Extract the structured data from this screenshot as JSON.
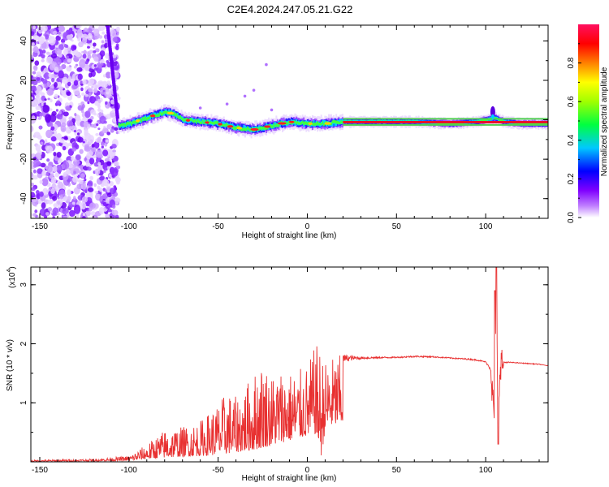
{
  "title": "C2E4.2024.247.05.21.G22",
  "colorbar": {
    "label": "Normalized spectral amplitude",
    "ticks": [
      "0.0",
      "0.2",
      "0.4",
      "0.6",
      "0.8"
    ],
    "tick_values": [
      0.0,
      0.2,
      0.4,
      0.6,
      0.8
    ],
    "range": [
      0,
      1
    ],
    "colormap": [
      "#ffffff",
      "#8000ff",
      "#0000ff",
      "#00ffff",
      "#00ff00",
      "#ffff00",
      "#ff0000",
      "#ff1060"
    ]
  },
  "chart_data": [
    {
      "type": "heatmap",
      "xlabel": "Height of straight line (km)",
      "ylabel": "Frequency (Hz)",
      "xlim": [
        -155,
        135
      ],
      "ylim": [
        -50,
        48
      ],
      "xticks": [
        -150,
        -100,
        -50,
        0,
        50,
        100
      ],
      "xtick_labels": [
        "-150",
        "-100",
        "-50",
        "0",
        "50",
        "100"
      ],
      "yticks": [
        -40,
        -20,
        0,
        20,
        40
      ],
      "ytick_labels": [
        "-40",
        "-20",
        "0",
        "20",
        "40"
      ],
      "ridge": {
        "description_values": "approximate frequency centre of the main band vs height",
        "x": [
          -105,
          -100,
          -90,
          -80,
          -75,
          -70,
          -60,
          -50,
          -40,
          -30,
          -20,
          -10,
          0,
          10,
          20,
          40,
          60,
          80,
          95,
          100,
          105,
          110,
          120,
          135
        ],
        "y": [
          -3,
          -2,
          1,
          4,
          3,
          0,
          -1,
          -2,
          -4,
          -5,
          -3,
          -1,
          -2,
          -2,
          -1,
          -1,
          -1,
          -2,
          -1,
          0,
          1,
          -1,
          -2,
          -2
        ]
      }
    },
    {
      "type": "line",
      "xlabel": "Height of straight line (km)",
      "ylabel": "SNR (10 * v/v)",
      "y_multiplier": "(x10",
      "y_multiplier_exp": "4",
      "y_multiplier_close": ")",
      "xlim": [
        -155,
        135
      ],
      "ylim": [
        0,
        3.3
      ],
      "xticks": [
        -150,
        -100,
        -50,
        0,
        50,
        100
      ],
      "xtick_labels": [
        "-150",
        "-100",
        "-50",
        "0",
        "50",
        "100"
      ],
      "yticks": [
        1,
        2,
        3
      ],
      "ytick_labels": [
        "1",
        "2",
        "3"
      ],
      "color": "#e83030",
      "envelope": {
        "x": [
          -155,
          -120,
          -100,
          -95,
          -90,
          -80,
          -70,
          -60,
          -50,
          -45,
          -40,
          -35,
          -30,
          -25,
          -20,
          -15,
          -10,
          -5,
          0,
          5,
          8,
          10,
          15,
          20,
          25,
          30,
          40,
          50,
          60,
          70,
          80,
          90,
          95,
          100,
          103,
          105,
          106,
          107,
          108,
          110,
          115,
          120,
          125,
          130,
          135
        ],
        "base": [
          0.02,
          0.03,
          0.05,
          0.08,
          0.12,
          0.18,
          0.22,
          0.25,
          0.3,
          0.35,
          0.4,
          0.45,
          0.5,
          0.6,
          0.7,
          0.8,
          0.9,
          1.0,
          1.1,
          1.2,
          0.2,
          1.4,
          1.55,
          1.62,
          1.68,
          1.72,
          1.74,
          1.75,
          1.76,
          1.76,
          1.74,
          1.72,
          1.7,
          1.68,
          1.5,
          0.6,
          2.9,
          0.5,
          1.7,
          1.66,
          1.67,
          1.66,
          1.65,
          1.64,
          1.62
        ],
        "peak": [
          0.03,
          0.05,
          0.1,
          0.2,
          0.3,
          0.55,
          0.6,
          0.7,
          1.0,
          1.2,
          1.1,
          1.3,
          1.5,
          1.75,
          1.5,
          1.6,
          1.55,
          1.55,
          1.65,
          2.0,
          1.9,
          1.7,
          1.8,
          1.82,
          1.8,
          1.78,
          1.78,
          1.78,
          1.8,
          1.79,
          1.77,
          1.75,
          1.74,
          1.7,
          1.6,
          2.95,
          3.3,
          2.6,
          1.8,
          1.7,
          1.69,
          1.68,
          1.67,
          1.66,
          1.63
        ]
      }
    }
  ]
}
